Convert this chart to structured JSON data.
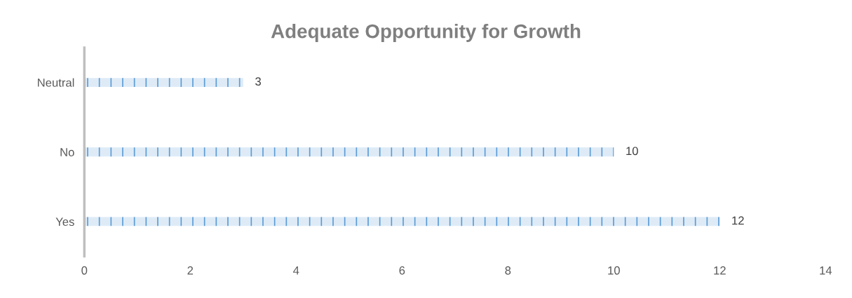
{
  "chart_data": {
    "type": "bar",
    "orientation": "horizontal",
    "title": "Adequate Opportunity for Growth",
    "categories": [
      "Neutral",
      "No",
      "Yes"
    ],
    "values": [
      3,
      10,
      12
    ],
    "color": "#5b9bd5",
    "xlim": [
      0,
      14
    ],
    "xticks": [
      0,
      2,
      4,
      6,
      8,
      10,
      12,
      14
    ],
    "data_labels": true,
    "grid": false,
    "legend": false
  }
}
